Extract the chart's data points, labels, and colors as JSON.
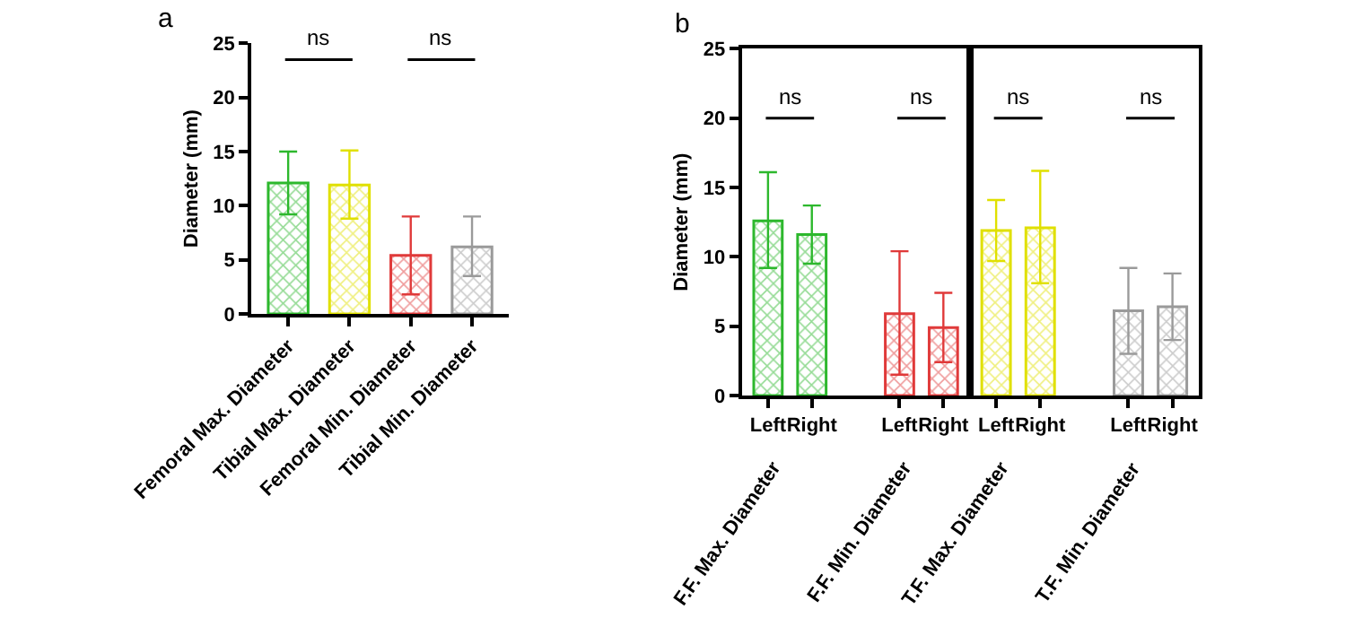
{
  "chart_data": [
    {
      "type": "bar",
      "title": "a",
      "ylabel": "Diameter (mm)",
      "categories": [
        "Femoral Max. Diameter",
        "Tibial Max. Diameter",
        "Femoral Min. Diameter",
        "Tibial Min. Diameter"
      ],
      "values": [
        12.1,
        11.9,
        5.4,
        6.2
      ],
      "colors": [
        "#2db82d",
        "#e0e000",
        "#e03a3a",
        "#9a9a9a"
      ],
      "errors": [
        [
          9.2,
          15.0
        ],
        [
          8.8,
          15.1
        ],
        [
          1.8,
          9.0
        ],
        [
          3.5,
          9.0
        ]
      ],
      "ylim": [
        0,
        25
      ],
      "yticks": [
        0,
        5,
        10,
        15,
        20,
        25
      ],
      "grid": false,
      "annotations": [
        "ns",
        "ns"
      ]
    },
    {
      "type": "bar",
      "title": "b",
      "ylabel": "Diameter (mm)",
      "categories": [
        "Left",
        "Right",
        null,
        "Left",
        "Right"
      ],
      "values": [
        12.6,
        11.6,
        null,
        5.9,
        4.9
      ],
      "colors": [
        "#2db82d",
        "#2db82d",
        null,
        "#e03a3a",
        "#e03a3a"
      ],
      "errors": [
        [
          9.2,
          16.1
        ],
        [
          9.5,
          13.7
        ],
        null,
        [
          1.5,
          10.4
        ],
        [
          2.4,
          7.4
        ]
      ],
      "ylim": [
        0,
        25
      ],
      "yticks": [
        0,
        5,
        10,
        15,
        20,
        25
      ],
      "grid": false,
      "annotations": [
        "ns",
        "ns",
        "F.F. Max. Diameter",
        "F.F. Min. Diameter"
      ]
    },
    {
      "type": "bar",
      "tick_labels": "x",
      "categories": [
        "Left",
        "Right",
        null,
        "Left",
        "Right"
      ],
      "values": [
        11.9,
        12.1,
        null,
        6.1,
        6.4
      ],
      "colors": [
        "#e0e000",
        "#e0e000",
        null,
        "#9a9a9a",
        "#9a9a9a"
      ],
      "errors": [
        [
          9.7,
          14.1
        ],
        [
          8.1,
          16.2
        ],
        null,
        [
          3.0,
          9.2
        ],
        [
          4.0,
          8.8
        ]
      ],
      "ylim": [
        0,
        25
      ],
      "yticks": [
        0,
        5,
        10,
        15,
        20,
        25
      ],
      "grid": false,
      "annotations": [
        "ns",
        "ns",
        "T.F. Max. Diameter",
        "T.F. Min. Diameter"
      ]
    }
  ]
}
